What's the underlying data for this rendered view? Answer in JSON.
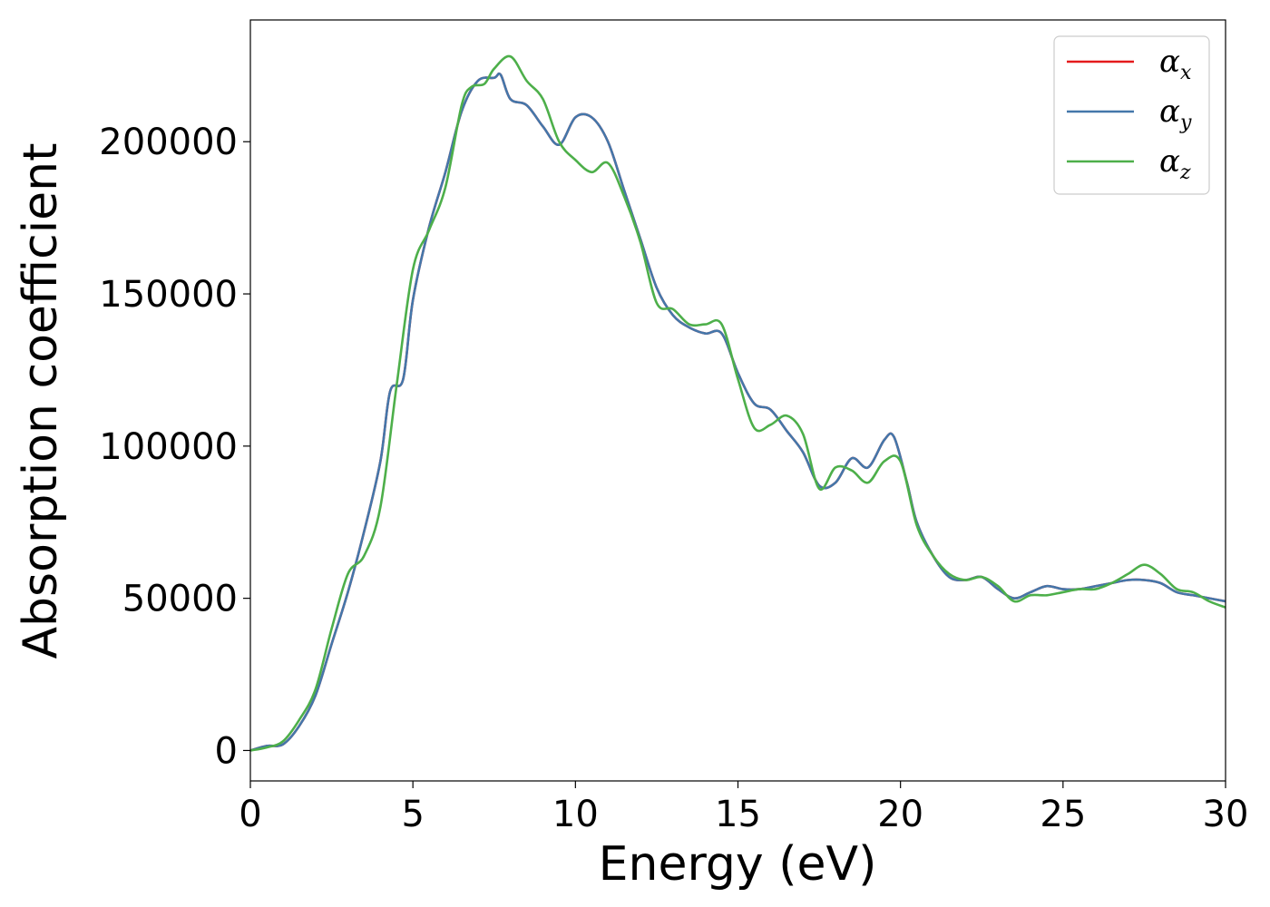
{
  "chart_data": {
    "type": "line",
    "xlabel": "Energy (eV)",
    "ylabel": "Absorption coefficient",
    "xlim": [
      0,
      30
    ],
    "ylim": [
      -10000,
      240000
    ],
    "xticks": [
      0,
      5,
      10,
      15,
      20,
      25,
      30
    ],
    "yticks": [
      0,
      50000,
      100000,
      150000,
      200000
    ],
    "grid": false,
    "legend_position": "top-right",
    "series": [
      {
        "name": "α",
        "subscript": "x",
        "color": "#e41a1c",
        "x": [
          0,
          0.5,
          1,
          1.5,
          2,
          2.5,
          3,
          3.5,
          4,
          4.3,
          4.7,
          5,
          5.5,
          6,
          6.5,
          7,
          7.5,
          7.7,
          8,
          8.5,
          9,
          9.5,
          10,
          10.5,
          11,
          11.5,
          12,
          12.5,
          13,
          13.5,
          14,
          14.5,
          15,
          15.5,
          16,
          16.5,
          17,
          17.5,
          18,
          18.5,
          19,
          19.5,
          19.8,
          20.2,
          20.5,
          21,
          21.5,
          22,
          22.5,
          23,
          23.5,
          24,
          24.5,
          25,
          25.5,
          26,
          26.5,
          27,
          27.5,
          28,
          28.5,
          29,
          29.5,
          30
        ],
        "y": [
          0,
          1500,
          2000,
          8000,
          18000,
          35000,
          52000,
          72000,
          95000,
          118000,
          122000,
          148000,
          172000,
          190000,
          210000,
          220000,
          221000,
          222000,
          214000,
          212000,
          205000,
          199000,
          208000,
          208000,
          200000,
          184000,
          168000,
          152000,
          143000,
          139000,
          137000,
          137000,
          124000,
          114000,
          112000,
          105000,
          98000,
          87000,
          88000,
          96000,
          93000,
          102000,
          103000,
          88000,
          75000,
          64000,
          57000,
          56000,
          57000,
          53000,
          50000,
          52000,
          54000,
          53000,
          53000,
          54000,
          55000,
          56000,
          56000,
          55000,
          52000,
          51000,
          50000,
          49000
        ]
      },
      {
        "name": "α",
        "subscript": "y",
        "color": "#4477aa",
        "x": [
          0,
          0.5,
          1,
          1.5,
          2,
          2.5,
          3,
          3.5,
          4,
          4.3,
          4.7,
          5,
          5.5,
          6,
          6.5,
          7,
          7.5,
          7.7,
          8,
          8.5,
          9,
          9.5,
          10,
          10.5,
          11,
          11.5,
          12,
          12.5,
          13,
          13.5,
          14,
          14.5,
          15,
          15.5,
          16,
          16.5,
          17,
          17.5,
          18,
          18.5,
          19,
          19.5,
          19.8,
          20.2,
          20.5,
          21,
          21.5,
          22,
          22.5,
          23,
          23.5,
          24,
          24.5,
          25,
          25.5,
          26,
          26.5,
          27,
          27.5,
          28,
          28.5,
          29,
          29.5,
          30
        ],
        "y": [
          0,
          1500,
          2000,
          8000,
          18000,
          35000,
          52000,
          72000,
          95000,
          118000,
          122000,
          148000,
          172000,
          190000,
          210000,
          220000,
          221000,
          222000,
          214000,
          212000,
          205000,
          199000,
          208000,
          208000,
          200000,
          184000,
          168000,
          152000,
          143000,
          139000,
          137000,
          137000,
          124000,
          114000,
          112000,
          105000,
          98000,
          87000,
          88000,
          96000,
          93000,
          102000,
          103000,
          88000,
          75000,
          64000,
          57000,
          56000,
          57000,
          53000,
          50000,
          52000,
          54000,
          53000,
          53000,
          54000,
          55000,
          56000,
          56000,
          55000,
          52000,
          51000,
          50000,
          49000
        ]
      },
      {
        "name": "α",
        "subscript": "z",
        "color": "#4daf4a",
        "x": [
          0,
          0.5,
          1,
          1.5,
          2,
          2.5,
          3,
          3.5,
          4,
          4.5,
          5,
          5.5,
          6,
          6.5,
          6.8,
          7.2,
          7.5,
          8,
          8.5,
          9,
          9.5,
          10,
          10.5,
          11,
          11.5,
          12,
          12.5,
          13,
          13.5,
          14,
          14.5,
          15,
          15.5,
          16,
          16.5,
          17,
          17.5,
          18,
          18.5,
          19,
          19.5,
          20,
          20.5,
          21,
          21.5,
          22,
          22.5,
          23,
          23.5,
          24,
          24.5,
          25,
          25.5,
          26,
          26.5,
          27,
          27.5,
          28,
          28.5,
          29,
          29.5,
          30
        ],
        "y": [
          0,
          1000,
          3000,
          10000,
          20000,
          40000,
          58000,
          64000,
          80000,
          120000,
          158000,
          171000,
          185000,
          212000,
          218000,
          219000,
          224000,
          228000,
          220000,
          214000,
          200000,
          194000,
          190000,
          193000,
          182000,
          167000,
          147000,
          145000,
          140000,
          140000,
          140000,
          122000,
          106000,
          107000,
          110000,
          104000,
          86000,
          93000,
          92000,
          88000,
          95000,
          95000,
          74000,
          64000,
          58000,
          56000,
          57000,
          54000,
          49000,
          51000,
          51000,
          52000,
          53000,
          53000,
          55000,
          58000,
          61000,
          58000,
          53000,
          52000,
          49000,
          47000
        ]
      }
    ]
  }
}
